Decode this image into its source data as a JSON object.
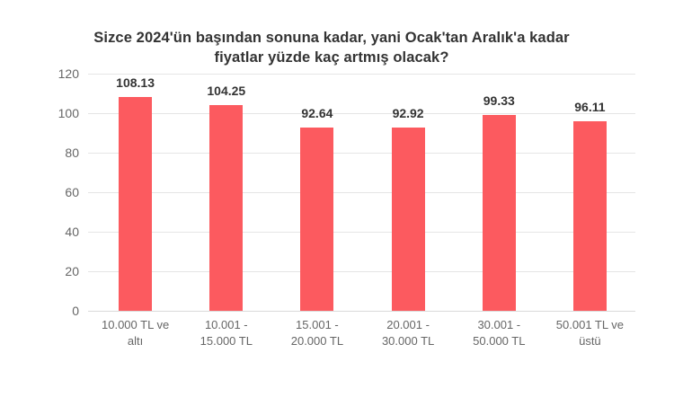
{
  "chart_data": {
    "type": "bar",
    "title": "Sizce 2024'ün başından sonuna kadar, yani Ocak'tan Aralık'a kadar fiyatlar yüzde kaç artmış olacak?",
    "title_lines": [
      "Sizce 2024'ün başından sonuna kadar, yani Ocak'tan Aralık'a kadar",
      "fiyatlar yüzde kaç artmış olacak?"
    ],
    "categories": [
      "10.000 TL ve altı",
      "10.001 - 15.000 TL",
      "15.001 - 20.000 TL",
      "20.001 - 30.000 TL",
      "30.001 - 50.000 TL",
      "50.001 TL ve üstü"
    ],
    "category_lines": [
      [
        "10.000 TL ve",
        "altı"
      ],
      [
        "10.001 -",
        "15.000 TL"
      ],
      [
        "15.001 -",
        "20.000 TL"
      ],
      [
        "20.001 -",
        "30.000 TL"
      ],
      [
        "30.001 -",
        "50.000 TL"
      ],
      [
        "50.001 TL ve",
        "üstü"
      ]
    ],
    "values": [
      108.13,
      104.25,
      92.64,
      92.92,
      99.33,
      96.11
    ],
    "value_labels": [
      "108.13",
      "104.25",
      "92.64",
      "92.92",
      "99.33",
      "96.11"
    ],
    "yticks": [
      0,
      20,
      40,
      60,
      80,
      100,
      120
    ],
    "ylim": [
      0,
      120
    ],
    "xlabel": "",
    "ylabel": "",
    "grid": true,
    "legend": false,
    "colors": {
      "bar": "#fc5a5f",
      "grid": "#e5e5e5",
      "axis_line": "#d9d9d9",
      "title": "#333333",
      "value_label": "#333333",
      "tick_label": "#666666",
      "background": "#ffffff"
    }
  }
}
